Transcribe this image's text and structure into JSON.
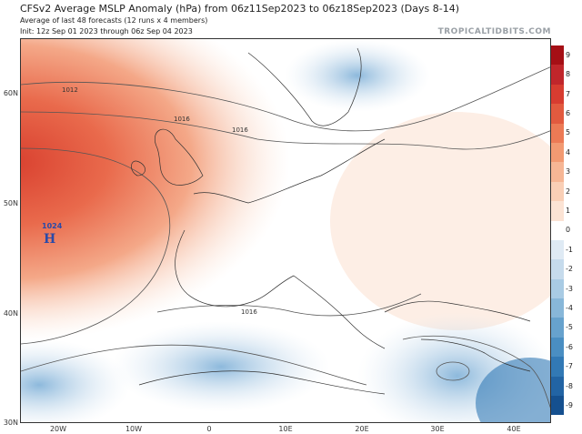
{
  "header": {
    "title": "CFSv2 Average MSLP Anomaly (hPa) from 06z11Sep2023 to 06z18Sep2023 (Days 8-14)",
    "subtitle1": "Average of last 48 forecasts (12 runs x 4 members)",
    "subtitle2": "Init: 12z Sep 01 2023 through 06z Sep 04 2023",
    "brand": "TROPICALTIDBITS.COM"
  },
  "map": {
    "lat_labels": [
      "60N",
      "50N",
      "40N",
      "30N"
    ],
    "lon_labels": [
      "20W",
      "10W",
      "0",
      "10E",
      "20E",
      "30E",
      "40E"
    ],
    "high_label": "H",
    "high_value": "1024",
    "isobar_labels": [
      "1012",
      "1016",
      "1016",
      "1016"
    ],
    "colors": {
      "positive": "#c0392b",
      "negative": "#4a90c8",
      "land_line": "#333333"
    }
  },
  "colorbar": {
    "ticks": [
      "9",
      "8",
      "7",
      "6",
      "5",
      "4",
      "3",
      "2",
      "1",
      "0",
      "-1",
      "-2",
      "-3",
      "-4",
      "-5",
      "-6",
      "-7",
      "-8",
      "-9"
    ],
    "colors": [
      "#a50f15",
      "#c0262b",
      "#d73c30",
      "#e25a3f",
      "#ec7a55",
      "#f29a72",
      "#f6b695",
      "#f9cfb6",
      "#fbe3d4",
      "#ffffff",
      "#dfeaf4",
      "#c6dbec",
      "#a9cbe4",
      "#88b7d9",
      "#67a2cd",
      "#4a8ec2",
      "#3279b5",
      "#2264a4",
      "#15508f"
    ]
  }
}
